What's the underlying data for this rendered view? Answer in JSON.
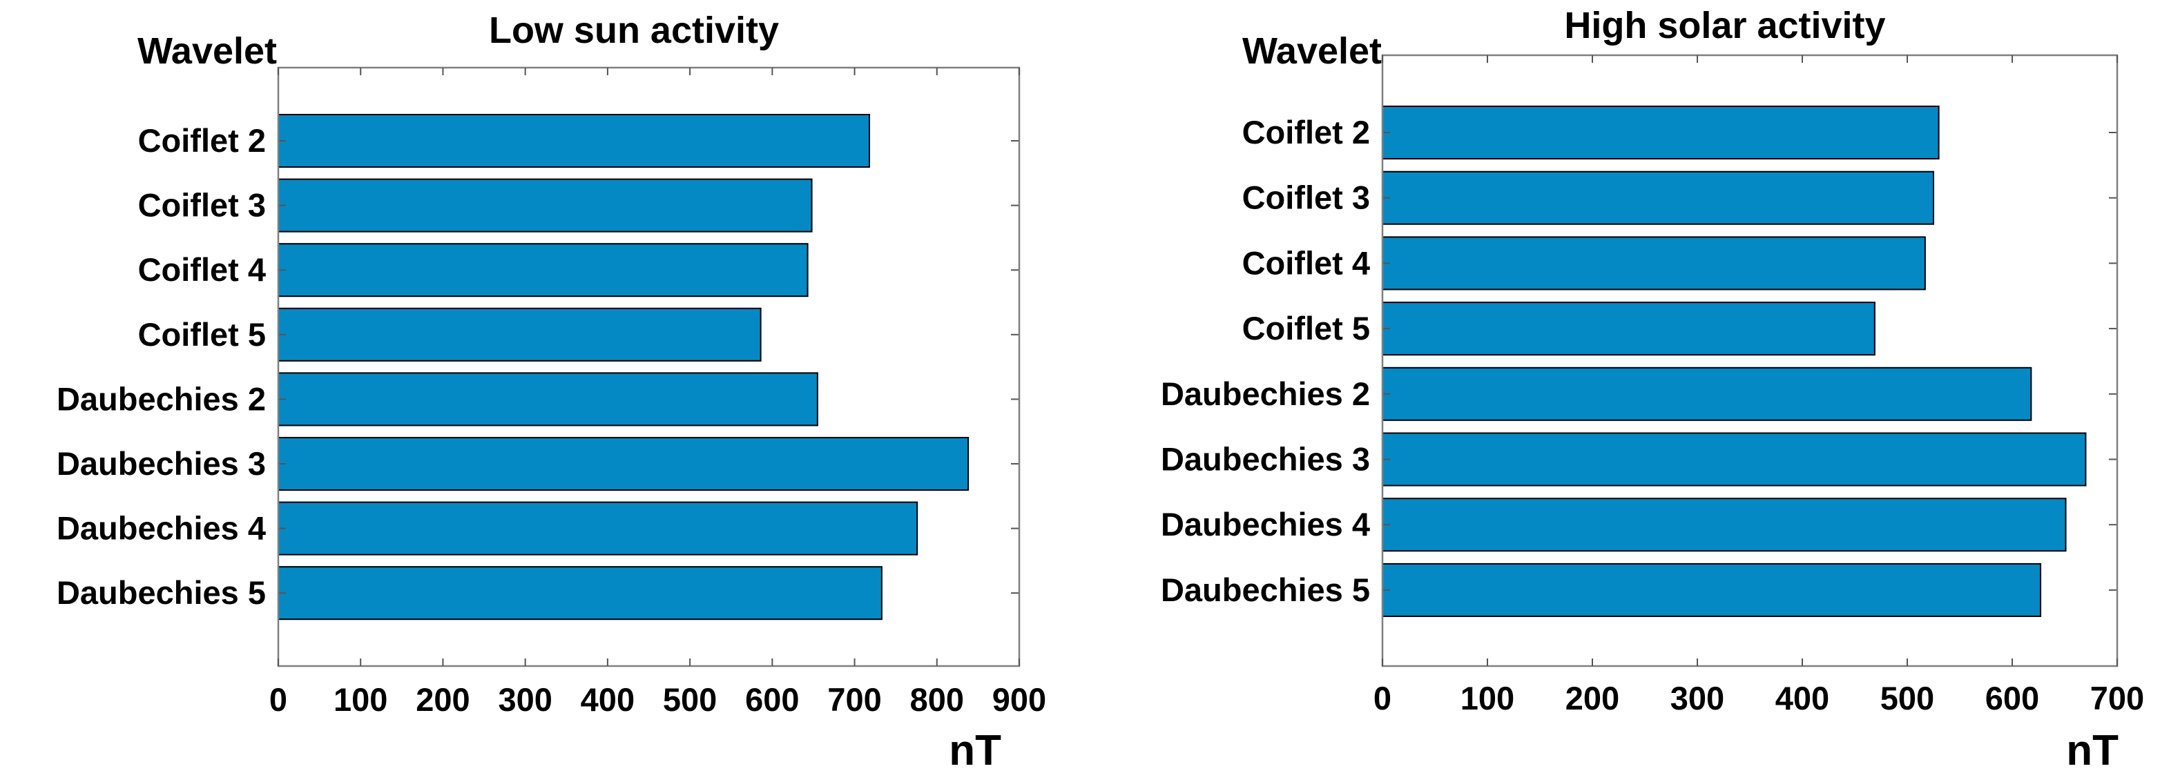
{
  "chart_data": [
    {
      "type": "bar",
      "orientation": "horizontal",
      "title": "Low sun activity",
      "ylabel": "Wavelet",
      "xlabel": "nT",
      "categories": [
        "Coiflet 2",
        "Coiflet 3",
        "Coiflet 4",
        "Coiflet 5",
        "Daubechies 2",
        "Daubechies 3",
        "Daubechies 4",
        "Daubechies 5"
      ],
      "values": [
        718,
        648,
        643,
        586,
        655,
        838,
        776,
        733
      ],
      "xlim": [
        0,
        900
      ],
      "xticks": [
        "0",
        "100",
        "200",
        "300",
        "400",
        "500",
        "600",
        "700",
        "800",
        "900"
      ],
      "grid": false,
      "colors": {
        "bar": "#0589c4"
      }
    },
    {
      "type": "bar",
      "orientation": "horizontal",
      "title": "High solar activity",
      "ylabel": "Wavelet",
      "xlabel": "nT",
      "categories": [
        "Coiflet 2",
        "Coiflet 3",
        "Coiflet 4",
        "Coiflet 5",
        "Daubechies 2",
        "Daubechies 3",
        "Daubechies 4",
        "Daubechies 5"
      ],
      "values": [
        530,
        525,
        517,
        469,
        618,
        670,
        651,
        627
      ],
      "xlim": [
        0,
        700
      ],
      "xticks": [
        "0",
        "100",
        "200",
        "300",
        "400",
        "500",
        "600",
        "700"
      ],
      "grid": false,
      "colors": {
        "bar": "#0589c4"
      }
    }
  ]
}
